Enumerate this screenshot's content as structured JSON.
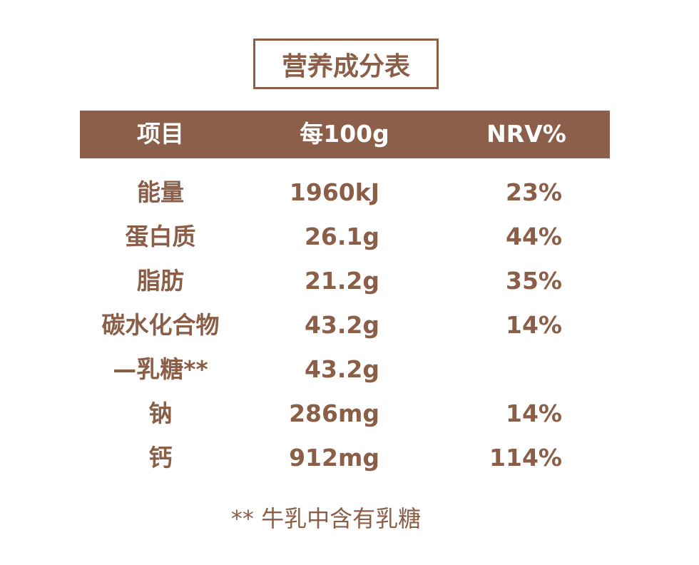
{
  "title": "营养成分表",
  "table": {
    "header": [
      "项目",
      "每100g",
      "NRV%"
    ],
    "rows": [
      [
        "能量",
        "1960kJ",
        "23%"
      ],
      [
        "蛋白质",
        "26.1g",
        "44%"
      ],
      [
        "脂肪",
        "21.2g",
        "35%"
      ],
      [
        "碳水化合物",
        "43.2g",
        "14%"
      ],
      [
        "—乳糖**",
        "43.2g"
      ],
      [
        "钠",
        "286mg",
        "14%"
      ],
      [
        "钙",
        "912mg",
        "114%"
      ]
    ]
  },
  "footnote": "** 牛乳中含有乳糖"
}
